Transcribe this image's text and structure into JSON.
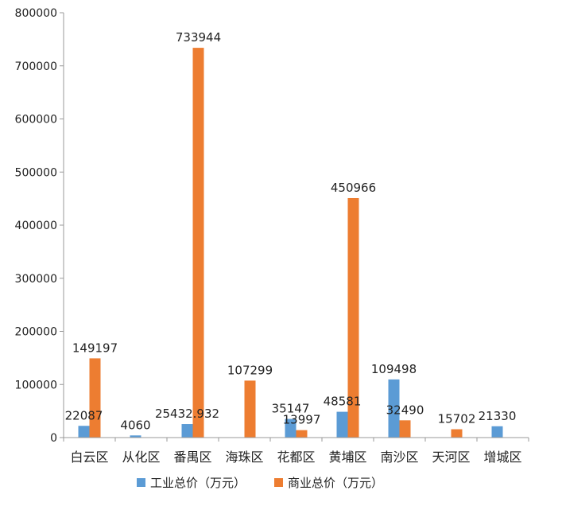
{
  "chart_data": {
    "type": "bar",
    "title": "",
    "xlabel": "",
    "ylabel": "",
    "ylim": [
      0,
      800000
    ],
    "yticks": [
      "0",
      "100000",
      "200000",
      "300000",
      "400000",
      "500000",
      "600000",
      "700000",
      "800000"
    ],
    "categories": [
      "白云区",
      "从化区",
      "番禺区",
      "海珠区",
      "花都区",
      "黄埔区",
      "南沙区",
      "天河区",
      "增城区"
    ],
    "grid": false,
    "legend_position": "bottom",
    "series": [
      {
        "name": "工业总价（万元）",
        "color": "#5b9bd5",
        "values": [
          22087,
          4060,
          25432.932,
          0,
          35147,
          48581,
          109498,
          0,
          21330
        ],
        "labels": [
          "22087",
          "4060",
          "25432.932",
          "",
          "35147",
          "48581",
          "109498",
          "",
          "21330"
        ]
      },
      {
        "name": "商业总价（万元）",
        "color": "#ed7d31",
        "values": [
          149197,
          0,
          733944,
          107299,
          13997,
          450966,
          32490,
          15702,
          0
        ],
        "labels": [
          "149197",
          "",
          "733944",
          "107299",
          "13997",
          "450966",
          "32490",
          "15702",
          ""
        ]
      }
    ]
  }
}
